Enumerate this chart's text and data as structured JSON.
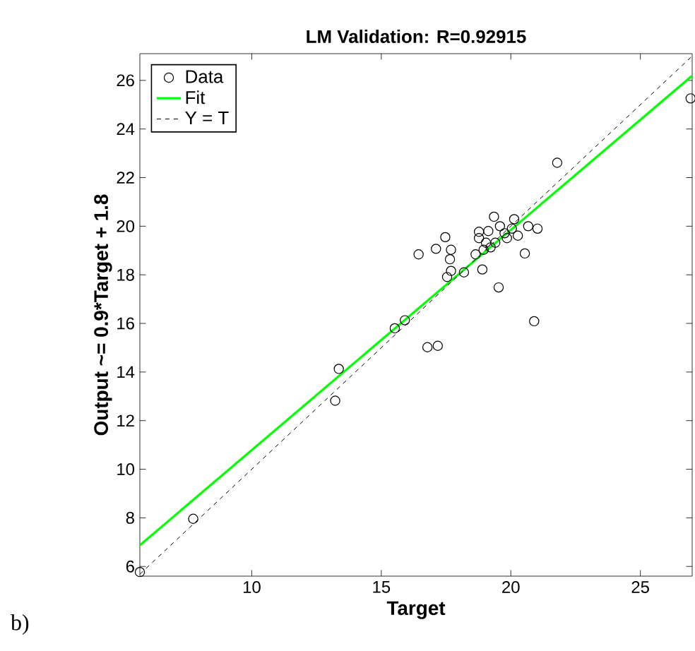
{
  "chart_data": {
    "type": "scatter",
    "title": "LM Validation: R=0.92915",
    "xlabel": "Target",
    "ylabel": "Output ~= 0.9*Target + 1.8",
    "annotations": [
      "b)"
    ],
    "xlim": [
      5.68,
      27
    ],
    "ylim": [
      5.6,
      27.1
    ],
    "xticks": [
      10,
      15,
      20,
      25
    ],
    "yticks": [
      6,
      8,
      10,
      12,
      14,
      16,
      18,
      20,
      22,
      24,
      26
    ],
    "grid": false,
    "legend": "top left",
    "series": [
      {
        "name": "Data",
        "marker": "circle",
        "color": "#000000",
        "x": [
          5.68,
          7.74,
          13.22,
          13.36,
          15.52,
          15.91,
          16.78,
          17.18,
          16.44,
          17.11,
          17.47,
          17.69,
          17.65,
          17.69,
          17.54,
          18.19,
          18.64,
          18.77,
          18.9,
          19.35,
          19.13,
          19.04,
          18.95,
          19.22,
          19.53,
          19.58,
          19.76,
          20.04,
          20.13,
          20.27,
          20.54,
          20.67,
          21.03,
          20.9,
          21.79,
          26.94,
          19.4,
          18.77,
          19.85
        ],
        "values": [
          5.77,
          7.96,
          12.82,
          14.13,
          15.8,
          16.13,
          15.02,
          15.08,
          18.84,
          19.07,
          19.55,
          19.03,
          18.64,
          18.16,
          17.91,
          18.1,
          18.84,
          19.77,
          18.22,
          20.39,
          19.8,
          19.32,
          19.03,
          19.13,
          17.48,
          20.0,
          19.71,
          19.9,
          20.29,
          19.61,
          18.88,
          20.0,
          19.9,
          16.09,
          22.61,
          25.26,
          19.32,
          19.51,
          19.51
        ]
      },
      {
        "name": "Fit",
        "type": "line",
        "color": "#00ff00",
        "line_style": "solid",
        "x": [
          5.68,
          27
        ],
        "values": [
          6.87,
          26.19
        ]
      },
      {
        "name": "Y = T",
        "type": "line",
        "color": "#000000",
        "line_style": "dashed",
        "x": [
          5.68,
          27
        ],
        "values": [
          5.68,
          27
        ]
      }
    ]
  }
}
